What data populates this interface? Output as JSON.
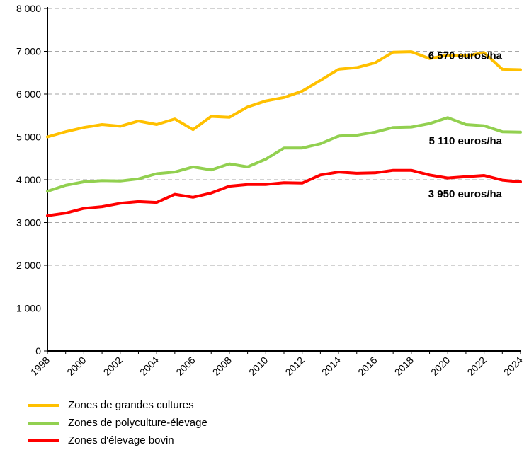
{
  "chart_data": {
    "type": "line",
    "title": "",
    "xlabel": "",
    "ylabel": "",
    "ylim": [
      0,
      8000
    ],
    "yticks": [
      0,
      1000,
      2000,
      3000,
      4000,
      5000,
      6000,
      7000,
      8000
    ],
    "ytick_labels": [
      "0",
      "1 000",
      "2 000",
      "3 000",
      "4 000",
      "5 000",
      "6 000",
      "7 000",
      "8 000"
    ],
    "xlim": [
      1998,
      2024
    ],
    "xticks": [
      "1998",
      "2000",
      "2002",
      "2004",
      "2006",
      "2008",
      "2010",
      "2012",
      "2014",
      "2016",
      "2018",
      "2020",
      "2022",
      "2024"
    ],
    "grid": "horizontal dashed",
    "legend_position": "bottom",
    "x": [
      1998,
      1999,
      2000,
      2001,
      2002,
      2003,
      2004,
      2005,
      2006,
      2007,
      2008,
      2009,
      2010,
      2011,
      2012,
      2013,
      2014,
      2015,
      2016,
      2017,
      2018,
      2019,
      2020,
      2021,
      2022,
      2023,
      2024
    ],
    "series": [
      {
        "name": "Zones de grandes cultures",
        "color": "#FFC000",
        "end_label": "6 570 euros/ha",
        "values": [
          5000,
          5120,
          5220,
          5290,
          5250,
          5370,
          5290,
          5420,
          5170,
          5480,
          5460,
          5700,
          5840,
          5920,
          6070,
          6320,
          6580,
          6620,
          6730,
          6980,
          6990,
          6830,
          6910,
          6890,
          6970,
          6580,
          6570
        ]
      },
      {
        "name": "Zones de polyculture-élevage",
        "color": "#92D050",
        "end_label": "5 110 euros/ha",
        "values": [
          3730,
          3870,
          3950,
          3980,
          3970,
          4020,
          4140,
          4180,
          4300,
          4230,
          4370,
          4300,
          4480,
          4740,
          4740,
          4840,
          5020,
          5040,
          5110,
          5220,
          5230,
          5310,
          5450,
          5290,
          5260,
          5120,
          5110
        ]
      },
      {
        "name": "Zones d'élevage bovin",
        "color": "#FF0000",
        "end_label": "3 950 euros/ha",
        "values": [
          3160,
          3220,
          3330,
          3370,
          3450,
          3490,
          3470,
          3660,
          3590,
          3690,
          3850,
          3890,
          3890,
          3930,
          3920,
          4110,
          4180,
          4150,
          4160,
          4220,
          4220,
          4110,
          4040,
          4070,
          4100,
          3990,
          3950
        ]
      }
    ]
  }
}
